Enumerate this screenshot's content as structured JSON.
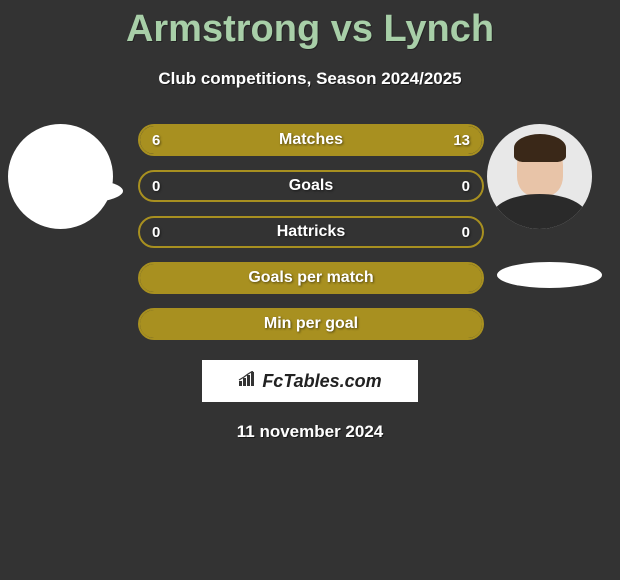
{
  "title": "Armstrong vs Lynch",
  "subtitle": "Club competitions, Season 2024/2025",
  "colors": {
    "background": "#333333",
    "title_color": "#a8cfa8",
    "bar_fill": "#a89020",
    "bar_border": "#a89020",
    "text_white": "#ffffff"
  },
  "player_left": {
    "name": "Armstrong"
  },
  "player_right": {
    "name": "Lynch"
  },
  "stats": [
    {
      "label": "Matches",
      "left_value": "6",
      "right_value": "13",
      "left_pct": 31.6,
      "right_pct": 68.4,
      "show_values": true
    },
    {
      "label": "Goals",
      "left_value": "0",
      "right_value": "0",
      "left_pct": 0,
      "right_pct": 0,
      "show_values": true
    },
    {
      "label": "Hattricks",
      "left_value": "0",
      "right_value": "0",
      "left_pct": 0,
      "right_pct": 0,
      "show_values": true
    },
    {
      "label": "Goals per match",
      "left_value": "",
      "right_value": "",
      "left_pct": 100,
      "right_pct": 0,
      "show_values": false,
      "full": true
    },
    {
      "label": "Min per goal",
      "left_value": "",
      "right_value": "",
      "left_pct": 100,
      "right_pct": 0,
      "show_values": false,
      "full": true
    }
  ],
  "logo": {
    "text": "FcTables.com"
  },
  "date": "11 november 2024"
}
